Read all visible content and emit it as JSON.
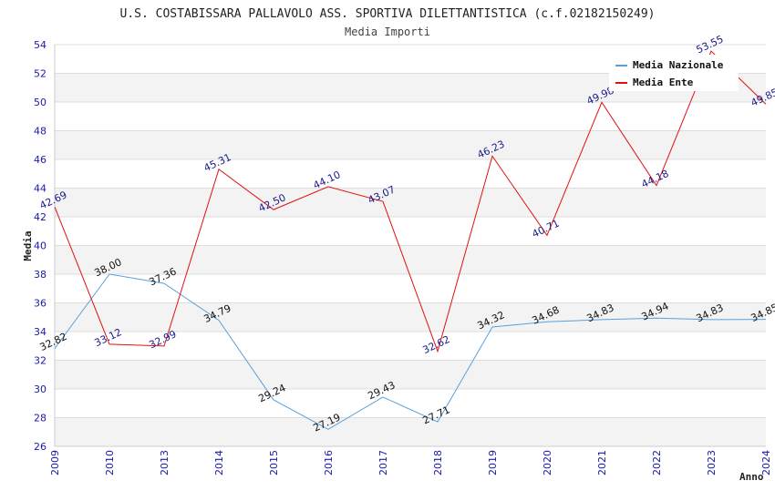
{
  "chart_data": {
    "type": "line",
    "title": "U.S. COSTABISSARA PALLAVOLO ASS. SPORTIVA DILETTANTISTICA (c.f.02182150249)",
    "subtitle": "Media Importi",
    "xlabel": "Anno",
    "ylabel": "Media",
    "ylim": [
      26,
      54
    ],
    "yticks": [
      "26",
      "28",
      "30",
      "32",
      "34",
      "36",
      "38",
      "40",
      "42",
      "44",
      "46",
      "48",
      "50",
      "52",
      "54"
    ],
    "categories": [
      "2009",
      "2010",
      "2013",
      "2014",
      "2015",
      "2016",
      "2017",
      "2018",
      "2019",
      "2020",
      "2021",
      "2022",
      "2023",
      "2024"
    ],
    "legend_position": "top-right",
    "series": [
      {
        "name": "Media Nazionale",
        "color": "#5aa0dc",
        "label_color": "#111111",
        "values": [
          32.82,
          38.0,
          37.36,
          34.79,
          29.24,
          27.19,
          29.43,
          27.71,
          34.32,
          34.68,
          34.83,
          34.94,
          34.83,
          34.85
        ],
        "labels": [
          "32.82",
          "38.00",
          "37.36",
          "34.79",
          "29.24",
          "27.19",
          "29.43",
          "27.71",
          "34.32",
          "34.68",
          "34.83",
          "34.94",
          "34.83",
          "34.85"
        ]
      },
      {
        "name": "Media Ente",
        "color": "#e01010",
        "label_color": "#1a1a8c",
        "values": [
          42.69,
          33.12,
          32.99,
          45.31,
          42.5,
          44.1,
          43.07,
          32.62,
          46.23,
          40.71,
          49.98,
          44.18,
          53.55,
          49.85
        ],
        "labels": [
          "42.69",
          "33.12",
          "32.99",
          "45.31",
          "42.50",
          "44.10",
          "43.07",
          "32.62",
          "46.23",
          "40.71",
          "49.98",
          "44.18",
          "53.55",
          "49.85"
        ]
      }
    ]
  }
}
